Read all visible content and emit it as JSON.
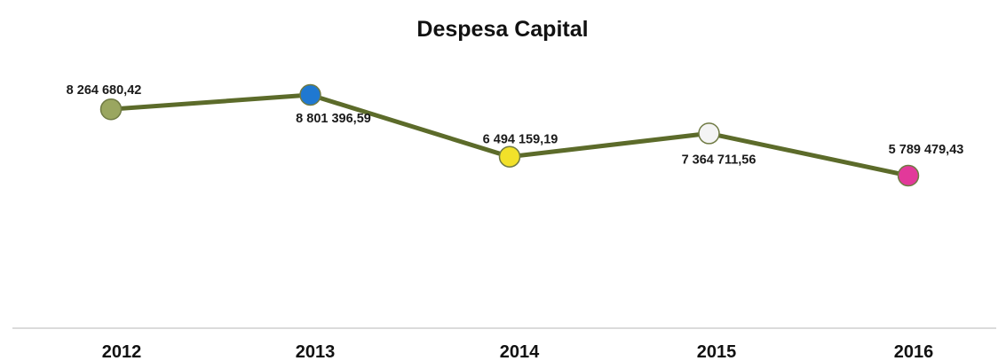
{
  "chart_data": {
    "type": "line",
    "title": "Despesa Capital",
    "xlabel": "",
    "ylabel": "",
    "categories": [
      "2012",
      "2013",
      "2014",
      "2015",
      "2016"
    ],
    "series": [
      {
        "values": [
          8264680.42,
          8801396.59,
          6494159.19,
          7364711.56,
          5789479.43
        ],
        "labels": [
          "8 264 680,42",
          "8 801 396,59",
          "6 494 159,19",
          "7 364 711,56",
          "5 789 479,43"
        ],
        "line_color": "#5c6b2a",
        "marker_colors": [
          "#9aa660",
          "#1f78d1",
          "#f2e12a",
          "#f4f4f4",
          "#e2399a"
        ]
      }
    ],
    "grid": false,
    "legend": "none"
  }
}
